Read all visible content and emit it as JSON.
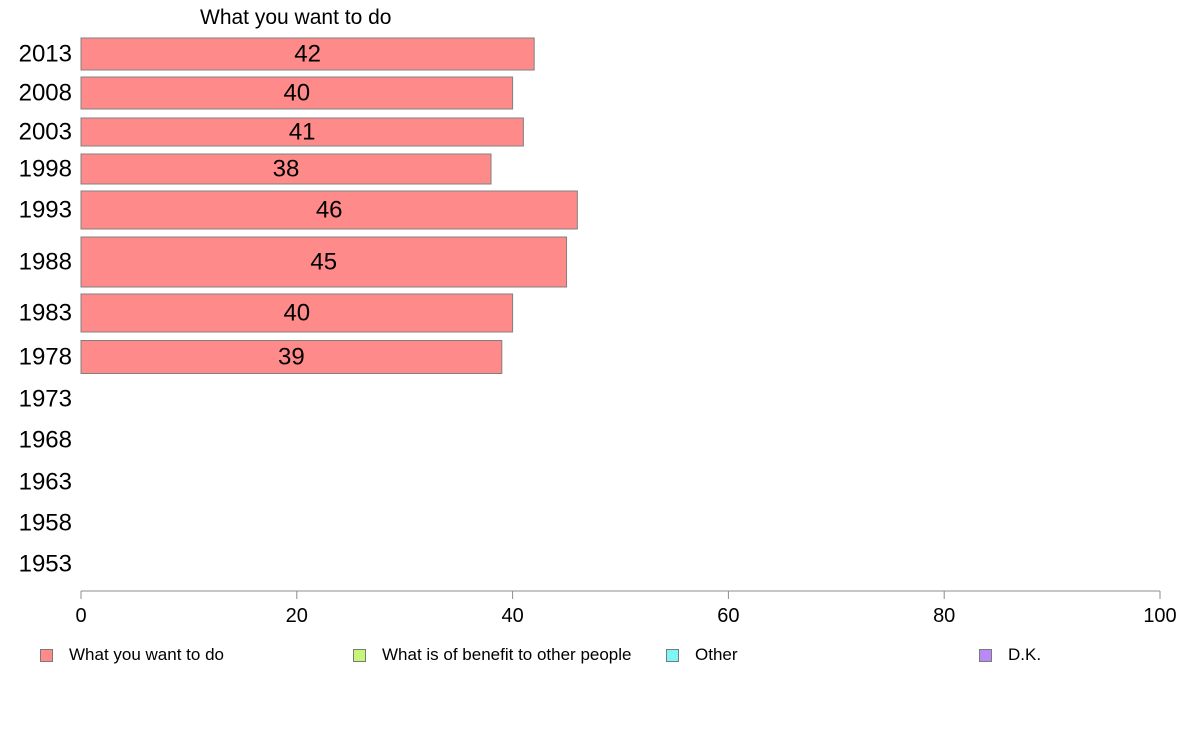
{
  "chart_data": {
    "type": "bar",
    "orientation": "horizontal",
    "categories": [
      "2013",
      "2008",
      "2003",
      "1998",
      "1993",
      "1988",
      "1983",
      "1978",
      "1973",
      "1968",
      "1963",
      "1958",
      "1953"
    ],
    "series": [
      {
        "name": "What you want to do",
        "color": "#ff8a8a",
        "values": [
          42,
          40,
          41,
          38,
          46,
          45,
          40,
          39,
          null,
          null,
          null,
          null,
          null
        ],
        "labels": [
          "42",
          "40",
          "41",
          "38",
          "46",
          "45",
          "40",
          "39",
          "",
          "",
          "",
          "",
          ""
        ]
      }
    ],
    "xlim": [
      0,
      100
    ],
    "xticks": [
      "0",
      "20",
      "40",
      "60",
      "80",
      "100"
    ],
    "grid": false,
    "legend_position": "bottom",
    "legend": [
      {
        "label": "What you want to do",
        "color": "#ff8a8a"
      },
      {
        "label": "What is of benefit to other people",
        "color": "#c6f57a"
      },
      {
        "label": "Other",
        "color": "#7ff6f6"
      },
      {
        "label": "D.K.",
        "color": "#b98af6"
      }
    ]
  }
}
